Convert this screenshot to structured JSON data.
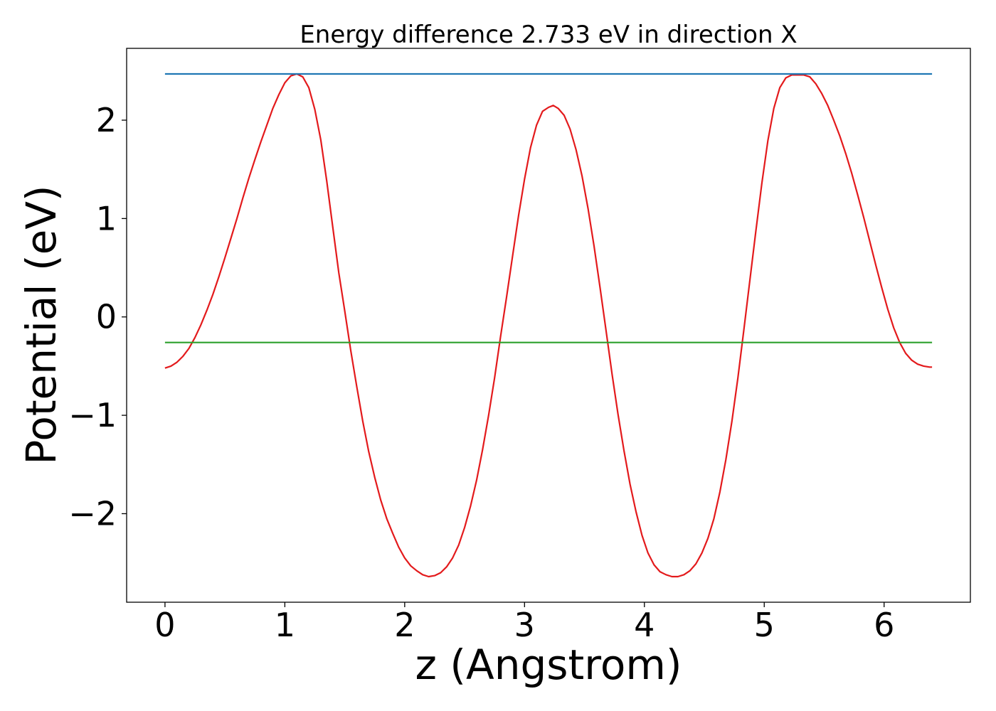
{
  "chart_data": {
    "type": "line",
    "title": "Energy difference 2.733 eV in direction X",
    "xlabel": "z (Angstrom)",
    "ylabel": "Potential (eV)",
    "xlim": [
      -0.32,
      6.72
    ],
    "ylim": [
      -2.9,
      2.73
    ],
    "xticks": [
      0,
      1,
      2,
      3,
      4,
      5,
      6
    ],
    "xtick_labels": [
      "0",
      "1",
      "2",
      "3",
      "4",
      "5",
      "6"
    ],
    "yticks": [
      -2,
      -1,
      0,
      1,
      2
    ],
    "ytick_labels": [
      "−2",
      "−1",
      "0",
      "1",
      "2"
    ],
    "grid": false,
    "legend": "none",
    "series": [
      {
        "color": "#e31a1c",
        "points": [
          [
            0.0,
            -0.52
          ],
          [
            0.05,
            -0.5
          ],
          [
            0.1,
            -0.46
          ],
          [
            0.15,
            -0.4
          ],
          [
            0.2,
            -0.32
          ],
          [
            0.25,
            -0.21
          ],
          [
            0.3,
            -0.08
          ],
          [
            0.35,
            0.07
          ],
          [
            0.4,
            0.23
          ],
          [
            0.45,
            0.41
          ],
          [
            0.5,
            0.6
          ],
          [
            0.55,
            0.8
          ],
          [
            0.6,
            1.0
          ],
          [
            0.65,
            1.21
          ],
          [
            0.7,
            1.41
          ],
          [
            0.75,
            1.6
          ],
          [
            0.8,
            1.78
          ],
          [
            0.85,
            1.95
          ],
          [
            0.9,
            2.12
          ],
          [
            0.95,
            2.26
          ],
          [
            1.0,
            2.38
          ],
          [
            1.05,
            2.45
          ],
          [
            1.1,
            2.47
          ],
          [
            1.15,
            2.44
          ],
          [
            1.2,
            2.33
          ],
          [
            1.25,
            2.11
          ],
          [
            1.3,
            1.8
          ],
          [
            1.35,
            1.38
          ],
          [
            1.4,
            0.91
          ],
          [
            1.45,
            0.45
          ],
          [
            1.5,
            0.06
          ],
          [
            1.55,
            -0.34
          ],
          [
            1.6,
            -0.71
          ],
          [
            1.65,
            -1.06
          ],
          [
            1.7,
            -1.37
          ],
          [
            1.75,
            -1.63
          ],
          [
            1.8,
            -1.86
          ],
          [
            1.85,
            -2.05
          ],
          [
            1.9,
            -2.2
          ],
          [
            1.95,
            -2.34
          ],
          [
            2.0,
            -2.45
          ],
          [
            2.05,
            -2.53
          ],
          [
            2.1,
            -2.58
          ],
          [
            2.15,
            -2.62
          ],
          [
            2.2,
            -2.64
          ],
          [
            2.25,
            -2.63
          ],
          [
            2.3,
            -2.6
          ],
          [
            2.35,
            -2.54
          ],
          [
            2.4,
            -2.45
          ],
          [
            2.45,
            -2.32
          ],
          [
            2.5,
            -2.14
          ],
          [
            2.55,
            -1.92
          ],
          [
            2.6,
            -1.66
          ],
          [
            2.65,
            -1.35
          ],
          [
            2.7,
            -1.0
          ],
          [
            2.75,
            -0.62
          ],
          [
            2.8,
            -0.2
          ],
          [
            2.85,
            0.2
          ],
          [
            2.9,
            0.62
          ],
          [
            2.95,
            1.03
          ],
          [
            3.0,
            1.4
          ],
          [
            3.05,
            1.72
          ],
          [
            3.1,
            1.95
          ],
          [
            3.15,
            2.09
          ],
          [
            3.2,
            2.13
          ],
          [
            3.24,
            2.15
          ],
          [
            3.28,
            2.12
          ],
          [
            3.33,
            2.05
          ],
          [
            3.38,
            1.91
          ],
          [
            3.43,
            1.7
          ],
          [
            3.48,
            1.43
          ],
          [
            3.53,
            1.1
          ],
          [
            3.58,
            0.72
          ],
          [
            3.63,
            0.3
          ],
          [
            3.68,
            -0.14
          ],
          [
            3.73,
            -0.58
          ],
          [
            3.78,
            -0.99
          ],
          [
            3.83,
            -1.36
          ],
          [
            3.88,
            -1.7
          ],
          [
            3.93,
            -1.98
          ],
          [
            3.98,
            -2.22
          ],
          [
            4.03,
            -2.4
          ],
          [
            4.08,
            -2.52
          ],
          [
            4.13,
            -2.59
          ],
          [
            4.18,
            -2.62
          ],
          [
            4.23,
            -2.64
          ],
          [
            4.28,
            -2.64
          ],
          [
            4.33,
            -2.62
          ],
          [
            4.38,
            -2.58
          ],
          [
            4.43,
            -2.51
          ],
          [
            4.48,
            -2.4
          ],
          [
            4.53,
            -2.25
          ],
          [
            4.58,
            -2.05
          ],
          [
            4.63,
            -1.78
          ],
          [
            4.68,
            -1.45
          ],
          [
            4.73,
            -1.06
          ],
          [
            4.78,
            -0.62
          ],
          [
            4.83,
            -0.13
          ],
          [
            4.88,
            0.37
          ],
          [
            4.93,
            0.87
          ],
          [
            4.98,
            1.36
          ],
          [
            5.03,
            1.79
          ],
          [
            5.08,
            2.12
          ],
          [
            5.13,
            2.33
          ],
          [
            5.18,
            2.43
          ],
          [
            5.23,
            2.46
          ],
          [
            5.28,
            2.46
          ],
          [
            5.33,
            2.46
          ],
          [
            5.38,
            2.44
          ],
          [
            5.43,
            2.37
          ],
          [
            5.48,
            2.27
          ],
          [
            5.53,
            2.15
          ],
          [
            5.58,
            2.0
          ],
          [
            5.63,
            1.84
          ],
          [
            5.68,
            1.66
          ],
          [
            5.73,
            1.46
          ],
          [
            5.78,
            1.24
          ],
          [
            5.83,
            1.01
          ],
          [
            5.88,
            0.77
          ],
          [
            5.93,
            0.53
          ],
          [
            5.98,
            0.3
          ],
          [
            6.03,
            0.08
          ],
          [
            6.08,
            -0.11
          ],
          [
            6.13,
            -0.26
          ],
          [
            6.18,
            -0.37
          ],
          [
            6.23,
            -0.44
          ],
          [
            6.28,
            -0.48
          ],
          [
            6.33,
            -0.5
          ],
          [
            6.38,
            -0.51
          ],
          [
            6.4,
            -0.51
          ]
        ]
      },
      {
        "color": "#1f77b4",
        "points": [
          [
            0.0,
            2.47
          ],
          [
            6.4,
            2.47
          ]
        ]
      },
      {
        "color": "#2ca02c",
        "points": [
          [
            0.0,
            -0.26
          ],
          [
            6.4,
            -0.26
          ]
        ]
      }
    ]
  }
}
